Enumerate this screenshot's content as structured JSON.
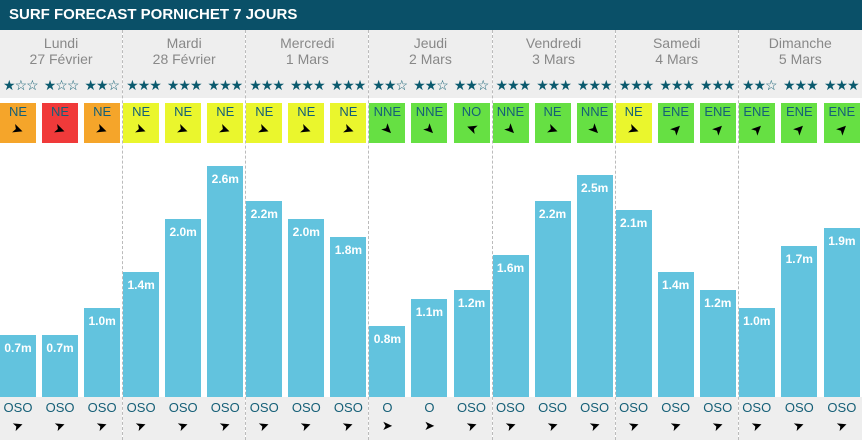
{
  "title": "SURF FORECAST PORNICHET 7 JOURS",
  "colors": {
    "header": "#0a5068",
    "bar": "#62c3de",
    "orange": "#f5a52a",
    "red": "#f03a3a",
    "yellow": "#eaf62d",
    "green": "#66e043"
  },
  "days": [
    {
      "name": "Lundi",
      "date": "27 Février",
      "slots": [
        {
          "stars": 1,
          "wind": "NE",
          "wcolor": "orange",
          "height": "0.7m",
          "h": 0.7,
          "swell": "OSO"
        },
        {
          "stars": 1,
          "wind": "NE",
          "wcolor": "red",
          "height": "0.7m",
          "h": 0.7,
          "swell": "OSO"
        },
        {
          "stars": 2,
          "wind": "NE",
          "wcolor": "orange",
          "height": "1.0m",
          "h": 1.0,
          "swell": "OSO"
        }
      ]
    },
    {
      "name": "Mardi",
      "date": "28 Février",
      "slots": [
        {
          "stars": 3,
          "wind": "NE",
          "wcolor": "yellow",
          "height": "1.4m",
          "h": 1.4,
          "swell": "OSO"
        },
        {
          "stars": 3,
          "wind": "NE",
          "wcolor": "yellow",
          "height": "2.0m",
          "h": 2.0,
          "swell": "OSO"
        },
        {
          "stars": 3,
          "wind": "NE",
          "wcolor": "yellow",
          "height": "2.6m",
          "h": 2.6,
          "swell": "OSO"
        }
      ]
    },
    {
      "name": "Mercredi",
      "date": "1 Mars",
      "slots": [
        {
          "stars": 3,
          "wind": "NE",
          "wcolor": "yellow",
          "height": "2.2m",
          "h": 2.2,
          "swell": "OSO"
        },
        {
          "stars": 3,
          "wind": "NE",
          "wcolor": "yellow",
          "height": "2.0m",
          "h": 2.0,
          "swell": "OSO"
        },
        {
          "stars": 3,
          "wind": "NE",
          "wcolor": "yellow",
          "height": "1.8m",
          "h": 1.8,
          "swell": "OSO"
        }
      ]
    },
    {
      "name": "Jeudi",
      "date": "2 Mars",
      "slots": [
        {
          "stars": 2,
          "wind": "NNE",
          "wcolor": "green",
          "height": "0.8m",
          "h": 0.8,
          "swell": "O"
        },
        {
          "stars": 2,
          "wind": "NNE",
          "wcolor": "green",
          "height": "1.1m",
          "h": 1.1,
          "swell": "O"
        },
        {
          "stars": 2,
          "wind": "NO",
          "wcolor": "green",
          "height": "1.2m",
          "h": 1.2,
          "swell": "OSO"
        }
      ]
    },
    {
      "name": "Vendredi",
      "date": "3 Mars",
      "slots": [
        {
          "stars": 3,
          "wind": "NNE",
          "wcolor": "green",
          "height": "1.6m",
          "h": 1.6,
          "swell": "OSO"
        },
        {
          "stars": 3,
          "wind": "NE",
          "wcolor": "green",
          "height": "2.2m",
          "h": 2.2,
          "swell": "OSO"
        },
        {
          "stars": 3,
          "wind": "NNE",
          "wcolor": "green",
          "height": "2.5m",
          "h": 2.5,
          "swell": "OSO"
        }
      ]
    },
    {
      "name": "Samedi",
      "date": "4 Mars",
      "slots": [
        {
          "stars": 3,
          "wind": "NE",
          "wcolor": "yellow",
          "height": "2.1m",
          "h": 2.1,
          "swell": "OSO"
        },
        {
          "stars": 3,
          "wind": "ENE",
          "wcolor": "green",
          "height": "1.4m",
          "h": 1.4,
          "swell": "OSO"
        },
        {
          "stars": 3,
          "wind": "ENE",
          "wcolor": "green",
          "height": "1.2m",
          "h": 1.2,
          "swell": "OSO"
        }
      ]
    },
    {
      "name": "Dimanche",
      "date": "5 Mars",
      "slots": [
        {
          "stars": 2,
          "wind": "ENE",
          "wcolor": "green",
          "height": "1.0m",
          "h": 1.0,
          "swell": "OSO"
        },
        {
          "stars": 3,
          "wind": "ENE",
          "wcolor": "green",
          "height": "1.7m",
          "h": 1.7,
          "swell": "OSO"
        },
        {
          "stars": 3,
          "wind": "ENE",
          "wcolor": "green",
          "height": "1.9m",
          "h": 1.9,
          "swell": "OSO"
        }
      ]
    }
  ]
}
